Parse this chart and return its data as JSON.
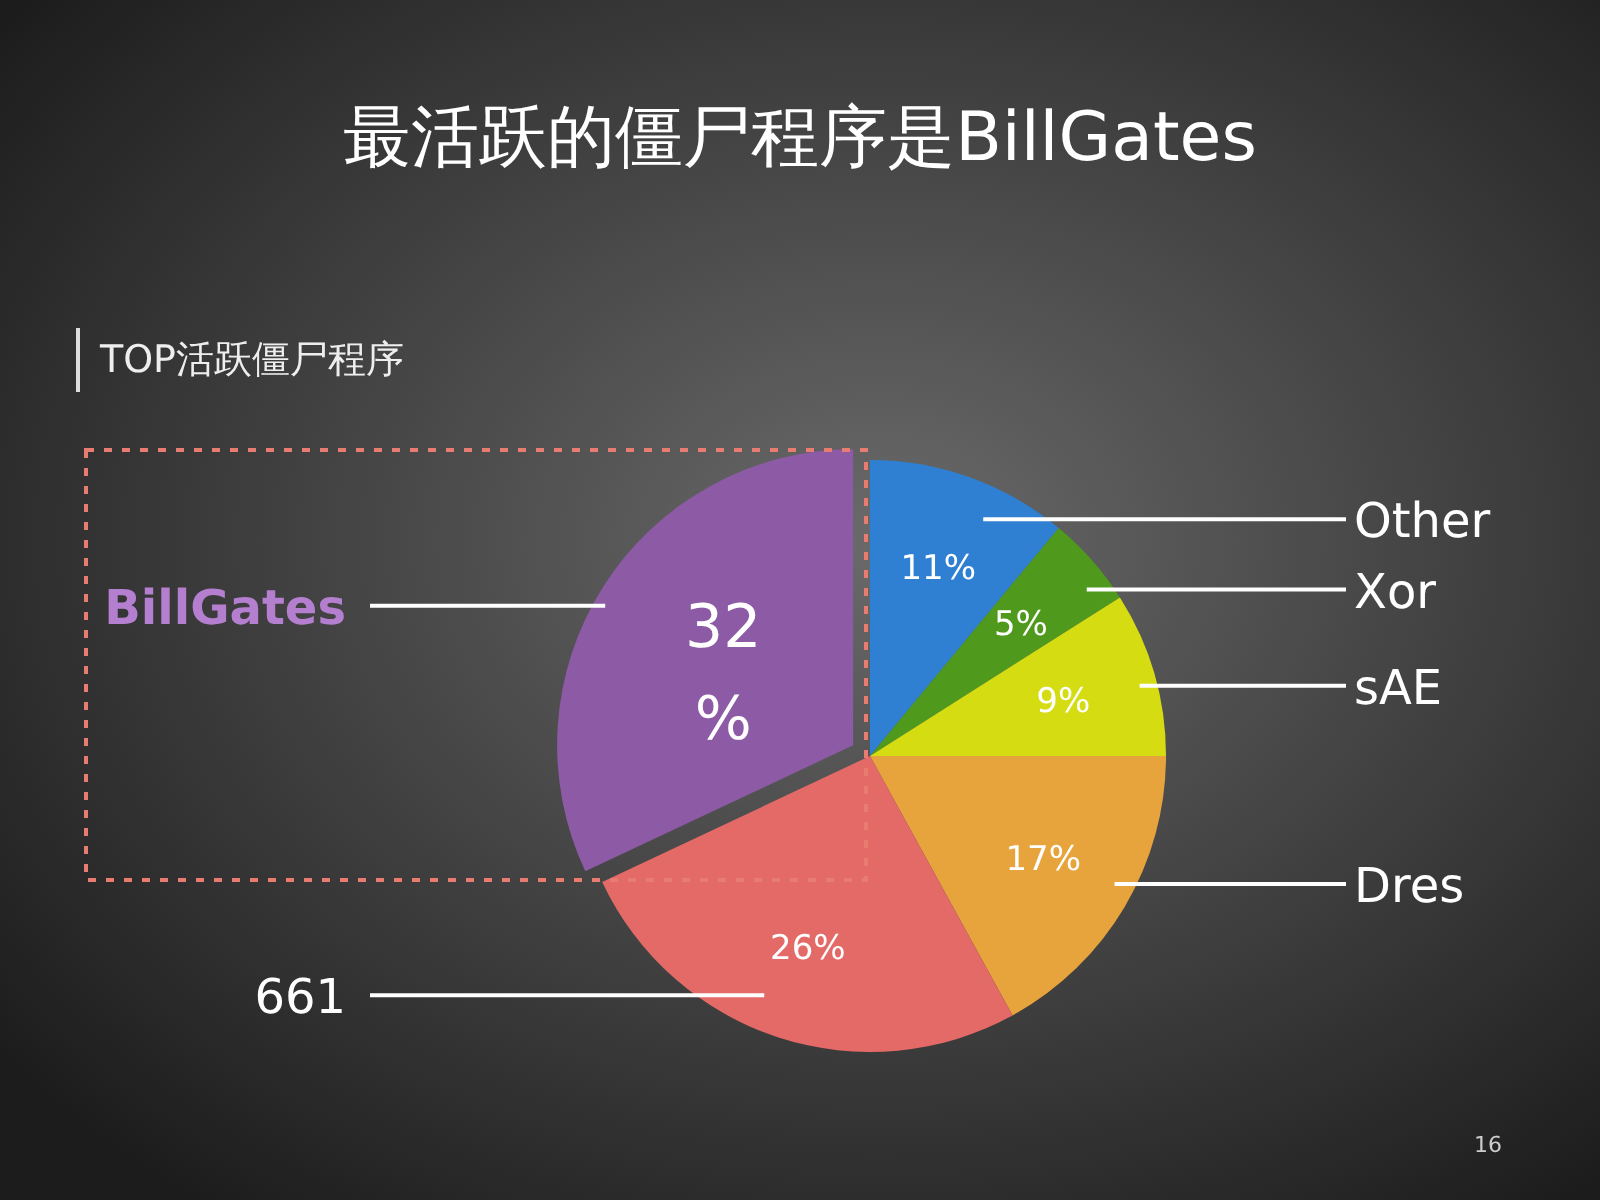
{
  "chart_data": {
    "type": "pie",
    "title": "最活跃的僵尸程序是BillGates",
    "subtitle": "TOP活跃僵尸程序",
    "categories": [
      "Other",
      "Xor",
      "sAE",
      "Dres",
      "661",
      "BillGates"
    ],
    "values": [
      11,
      5,
      9,
      17,
      26,
      32
    ],
    "value_labels": [
      "11%",
      "5%",
      "9%",
      "17%",
      "26%",
      "32%"
    ],
    "colors": [
      "#2f80d2",
      "#4f9a1c",
      "#d6dc12",
      "#e8a43c",
      "#e46a68",
      "#8d5aa6"
    ],
    "annotations": [
      "16"
    ]
  }
}
